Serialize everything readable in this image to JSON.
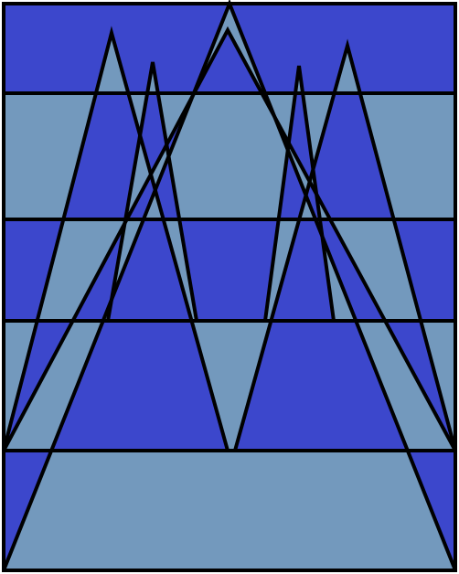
{
  "figure": {
    "colors": {
      "fill_dark": "#3c47cc",
      "fill_light": "#7399bd",
      "stroke": "#000000"
    },
    "bands": 5,
    "triangles": 6
  }
}
